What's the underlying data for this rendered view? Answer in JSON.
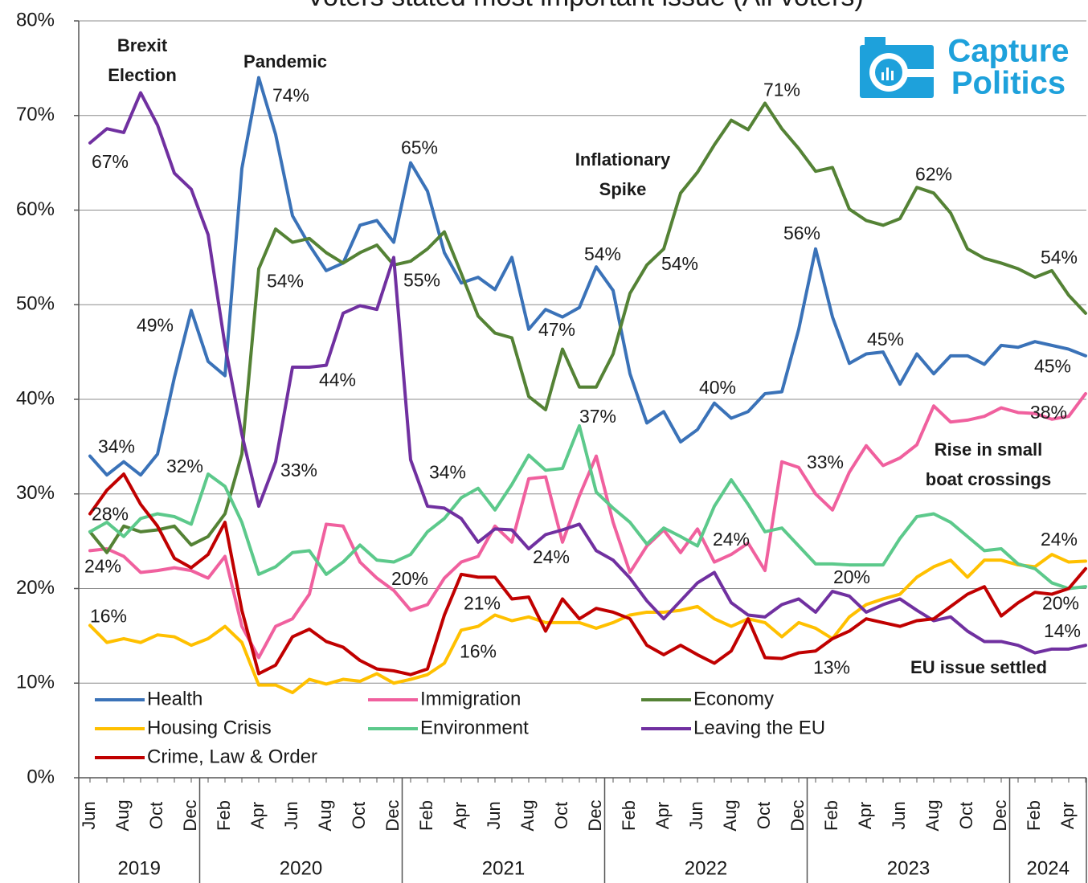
{
  "chart_data": {
    "type": "line",
    "title": "Voters stated most important issue (All voters)",
    "categories": [
      "Jun",
      null,
      "Aug",
      null,
      "Oct",
      null,
      "Dec",
      null,
      "Feb",
      null,
      "Apr",
      null,
      "Jun",
      null,
      "Aug",
      null,
      "Oct",
      null,
      "Dec",
      null,
      "Feb",
      null,
      "Apr",
      null,
      "Jun",
      null,
      "Aug",
      null,
      "Oct",
      null,
      "Dec",
      null,
      "Feb",
      null,
      "Apr",
      null,
      "Jun",
      null,
      "Aug",
      null,
      "Oct",
      null,
      "Dec",
      null,
      "Feb",
      null,
      "Apr",
      null,
      "Jun",
      null,
      "Aug",
      null,
      "Oct",
      null,
      "Dec",
      null,
      "Feb",
      null,
      "Apr",
      null
    ],
    "years": [
      "2019",
      "2020",
      "2021",
      "2022",
      "2023",
      "2024"
    ],
    "ylim": [
      0,
      80
    ],
    "yticks": [
      {
        "value": 0,
        "label": "0%"
      },
      {
        "value": 10,
        "label": "10%"
      },
      {
        "value": 20,
        "label": "20%"
      },
      {
        "value": 30,
        "label": "30%"
      },
      {
        "value": 40,
        "label": "40%"
      },
      {
        "value": 50,
        "label": "50%"
      },
      {
        "value": 60,
        "label": "60%"
      },
      {
        "value": 70,
        "label": "70%"
      },
      {
        "value": 80,
        "label": "80%"
      }
    ],
    "grid": true,
    "series": [
      {
        "name": "Health",
        "color": "#3a72b8",
        "values": [
          34,
          32,
          33.4,
          32,
          34.2,
          42.3,
          49.4,
          44,
          42.5,
          64.4,
          74,
          68,
          59.4,
          56.3,
          53.6,
          54.4,
          58.4,
          58.9,
          56.6,
          65,
          62,
          55.5,
          52.3,
          52.9,
          51.6,
          55,
          47.4,
          49.5,
          48.7,
          49.7,
          54,
          51.5,
          42.7,
          37.5,
          38.7,
          35.5,
          36.8,
          39.6,
          38,
          38.7,
          40.6,
          40.8,
          47.4,
          55.9,
          48.7,
          43.8,
          44.8,
          45,
          41.6,
          44.8,
          42.7,
          44.6,
          44.6,
          43.7,
          45.7,
          45.5,
          46.1,
          45.7,
          45.3,
          44.6
        ],
        "value_labels": [
          "34%",
          null,
          null,
          null,
          null,
          null,
          "49%",
          null,
          null,
          null,
          "74%",
          null,
          null,
          null,
          null,
          null,
          null,
          null,
          null,
          "65%",
          null,
          null,
          null,
          null,
          null,
          null,
          "47%",
          null,
          null,
          null,
          "54%",
          null,
          null,
          null,
          null,
          null,
          null,
          "40%",
          null,
          null,
          null,
          null,
          null,
          "56%",
          null,
          null,
          null,
          "45%",
          null,
          null,
          null,
          null,
          null,
          null,
          null,
          null,
          null,
          null,
          "45%",
          null
        ]
      },
      {
        "name": "Immigration",
        "color": "#f0609e",
        "values": [
          24,
          24.2,
          23.4,
          21.7,
          21.9,
          22.2,
          21.9,
          21.1,
          23.4,
          16,
          12.7,
          16,
          16.8,
          19.4,
          26.8,
          26.6,
          22.8,
          21.1,
          19.8,
          17.7,
          18.3,
          21.1,
          22.8,
          23.4,
          26.6,
          24.9,
          31.6,
          31.8,
          24.9,
          29.8,
          34,
          27,
          21.7,
          24.5,
          26.2,
          23.8,
          26.3,
          22.8,
          23.6,
          24.8,
          21.9,
          33.4,
          32.8,
          30,
          28.3,
          32.3,
          35.1,
          33,
          33.8,
          35.2,
          39.3,
          37.6,
          37.8,
          38.2,
          39.1,
          38.6,
          38.5,
          37.9,
          38.2,
          40.6
        ],
        "value_labels": [
          "24%",
          null,
          null,
          null,
          null,
          null,
          null,
          null,
          null,
          null,
          null,
          null,
          null,
          null,
          null,
          null,
          null,
          null,
          "20%",
          null,
          null,
          null,
          null,
          null,
          null,
          null,
          null,
          null,
          null,
          null,
          null,
          null,
          null,
          null,
          null,
          null,
          null,
          null,
          "24%",
          null,
          null,
          null,
          "33%",
          null,
          null,
          null,
          null,
          null,
          null,
          null,
          null,
          null,
          null,
          null,
          null,
          null,
          null,
          "38%",
          null,
          null
        ]
      },
      {
        "name": "Economy",
        "color": "#548235",
        "values": [
          26,
          23.8,
          26.6,
          26,
          26.2,
          26.6,
          24.6,
          25.5,
          27.9,
          34.2,
          53.8,
          58,
          56.6,
          57,
          55.5,
          54.4,
          55.5,
          56.3,
          54.2,
          54.6,
          55.9,
          57.7,
          53.3,
          48.8,
          47,
          46.5,
          40.3,
          38.9,
          45.3,
          41.3,
          41.3,
          44.8,
          51.2,
          54.2,
          55.9,
          61.8,
          64,
          66.9,
          69.5,
          68.5,
          71.3,
          68.6,
          66.5,
          64.1,
          64.5,
          60.1,
          58.9,
          58.4,
          59.1,
          62.4,
          61.8,
          59.7,
          55.9,
          54.9,
          54.4,
          53.8,
          52.9,
          53.6,
          51,
          49.1
        ],
        "value_labels": [
          null,
          null,
          null,
          null,
          null,
          null,
          null,
          null,
          null,
          null,
          "54%",
          null,
          null,
          null,
          null,
          null,
          null,
          null,
          null,
          null,
          null,
          null,
          null,
          null,
          null,
          null,
          null,
          null,
          null,
          null,
          null,
          null,
          null,
          "54%",
          null,
          null,
          null,
          null,
          null,
          null,
          "71%",
          null,
          null,
          null,
          null,
          null,
          null,
          null,
          null,
          "62%",
          null,
          null,
          null,
          null,
          null,
          null,
          null,
          "54%",
          null,
          null
        ]
      },
      {
        "name": "Housing Crisis",
        "color": "#ffc000",
        "values": [
          16.1,
          14.3,
          14.7,
          14.3,
          15.1,
          14.9,
          14,
          14.7,
          16,
          14.3,
          9.8,
          9.8,
          9,
          10.4,
          9.9,
          10.4,
          10.2,
          11,
          10,
          10.4,
          10.9,
          12.1,
          15.6,
          16,
          17.2,
          16.6,
          17,
          16.4,
          16.4,
          16.4,
          15.8,
          16.4,
          17.2,
          17.5,
          17.5,
          17.7,
          18.1,
          16.8,
          16,
          16.8,
          16.4,
          14.9,
          16.4,
          15.8,
          14.7,
          17,
          18.3,
          18.9,
          19.4,
          21.2,
          22.3,
          23,
          21.2,
          23,
          23,
          22.5,
          22.3,
          23.6,
          22.8,
          22.9
        ],
        "value_labels": [
          "16%",
          null,
          null,
          null,
          null,
          null,
          null,
          null,
          null,
          null,
          null,
          null,
          null,
          null,
          null,
          null,
          null,
          null,
          null,
          null,
          null,
          null,
          "16%",
          null,
          null,
          null,
          null,
          null,
          null,
          null,
          null,
          null,
          null,
          null,
          null,
          null,
          null,
          null,
          null,
          null,
          null,
          null,
          null,
          null,
          null,
          null,
          null,
          null,
          null,
          null,
          null,
          null,
          null,
          null,
          null,
          null,
          null,
          "24%",
          null,
          null
        ]
      },
      {
        "name": "Environment",
        "color": "#5cc98b",
        "values": [
          26,
          27,
          25.5,
          27.4,
          27.9,
          27.6,
          26.8,
          32.1,
          30.8,
          27,
          21.5,
          22.3,
          23.8,
          24,
          21.5,
          22.8,
          24.6,
          23,
          22.8,
          23.6,
          26,
          27.4,
          29.6,
          30.6,
          28.3,
          31,
          34.1,
          32.5,
          32.7,
          37.2,
          30.2,
          28.5,
          27,
          24.7,
          26.4,
          25.5,
          24.5,
          28.7,
          31.5,
          28.9,
          26,
          26.4,
          24.5,
          22.6,
          22.6,
          22.5,
          22.5,
          22.5,
          25.3,
          27.6,
          27.9,
          27,
          25.5,
          24,
          24.2,
          22.6,
          22.1,
          20.6,
          20,
          20.2
        ],
        "value_labels": [
          null,
          null,
          null,
          null,
          null,
          null,
          null,
          "32%",
          null,
          null,
          null,
          null,
          null,
          null,
          null,
          null,
          null,
          null,
          null,
          null,
          null,
          null,
          null,
          null,
          null,
          null,
          null,
          null,
          null,
          "37%",
          null,
          null,
          null,
          null,
          null,
          null,
          null,
          null,
          null,
          null,
          null,
          null,
          null,
          null,
          null,
          null,
          null,
          null,
          null,
          null,
          null,
          null,
          null,
          null,
          null,
          null,
          null,
          null,
          "20%",
          null
        ]
      },
      {
        "name": "Leaving the EU",
        "color": "#7030a0",
        "values": [
          67.1,
          68.6,
          68.2,
          72.4,
          69,
          63.9,
          62.2,
          57.4,
          45.7,
          36.3,
          28.7,
          33.4,
          43.4,
          43.4,
          43.6,
          49.1,
          49.9,
          49.5,
          55,
          33.6,
          28.7,
          28.5,
          27.4,
          24.9,
          26.3,
          26.2,
          24.2,
          25.7,
          26.2,
          26.8,
          24,
          23,
          21.1,
          18.7,
          16.8,
          18.7,
          20.6,
          21.7,
          18.5,
          17.2,
          17,
          18.3,
          18.9,
          17.5,
          19.7,
          19.2,
          17.5,
          18.3,
          18.9,
          17.7,
          16.6,
          17,
          15.5,
          14.4,
          14.4,
          14,
          13.2,
          13.6,
          13.6,
          14
        ],
        "value_labels": [
          "67%",
          null,
          null,
          null,
          null,
          null,
          null,
          null,
          null,
          null,
          null,
          "33%",
          null,
          null,
          "44%",
          null,
          null,
          null,
          "55%",
          "34%",
          null,
          null,
          null,
          null,
          null,
          null,
          "24%",
          null,
          null,
          null,
          null,
          null,
          null,
          null,
          null,
          null,
          null,
          null,
          null,
          null,
          null,
          null,
          null,
          null,
          "20%",
          null,
          null,
          null,
          null,
          null,
          null,
          null,
          null,
          null,
          null,
          null,
          null,
          null,
          null,
          "14%"
        ]
      },
      {
        "name": "Crime, Law & Order",
        "color": "#c00000",
        "values": [
          27.9,
          30.4,
          32.1,
          28.9,
          26.6,
          23.2,
          22.2,
          23.6,
          27,
          17.7,
          11,
          11.9,
          14.9,
          15.7,
          14.4,
          13.8,
          12.4,
          11.5,
          11.3,
          10.9,
          11.5,
          17.2,
          21.5,
          21.2,
          21.2,
          18.9,
          19.1,
          15.5,
          18.9,
          16.8,
          17.9,
          17.5,
          16.8,
          14,
          13,
          14,
          13,
          12.1,
          13.4,
          16.8,
          12.7,
          12.6,
          13.2,
          13.4,
          14.7,
          15.5,
          16.8,
          16.4,
          16,
          16.6,
          16.8,
          18.1,
          19.4,
          20.2,
          17.1,
          18.5,
          19.6,
          19.4,
          20,
          22.1
        ],
        "value_labels": [
          "28%",
          null,
          null,
          null,
          null,
          null,
          null,
          null,
          null,
          null,
          null,
          null,
          null,
          null,
          null,
          null,
          null,
          null,
          null,
          null,
          null,
          null,
          null,
          "21%",
          null,
          null,
          null,
          null,
          null,
          null,
          null,
          null,
          null,
          null,
          null,
          null,
          null,
          null,
          null,
          null,
          null,
          null,
          null,
          "13%",
          null,
          null,
          null,
          null,
          null,
          null,
          null,
          null,
          null,
          null,
          null,
          null,
          null,
          null,
          null,
          null
        ]
      }
    ],
    "annotations": [
      {
        "lines": [
          "Brexit",
          "Election"
        ]
      },
      {
        "lines": [
          "Pandemic"
        ]
      },
      {
        "lines": [
          "Inflationary",
          "Spike"
        ]
      },
      {
        "lines": [
          "Rise in small",
          "boat crossings"
        ]
      },
      {
        "lines": [
          "EU issue settled"
        ]
      }
    ],
    "logo": {
      "lines": [
        "Capture",
        "Politics"
      ]
    }
  }
}
